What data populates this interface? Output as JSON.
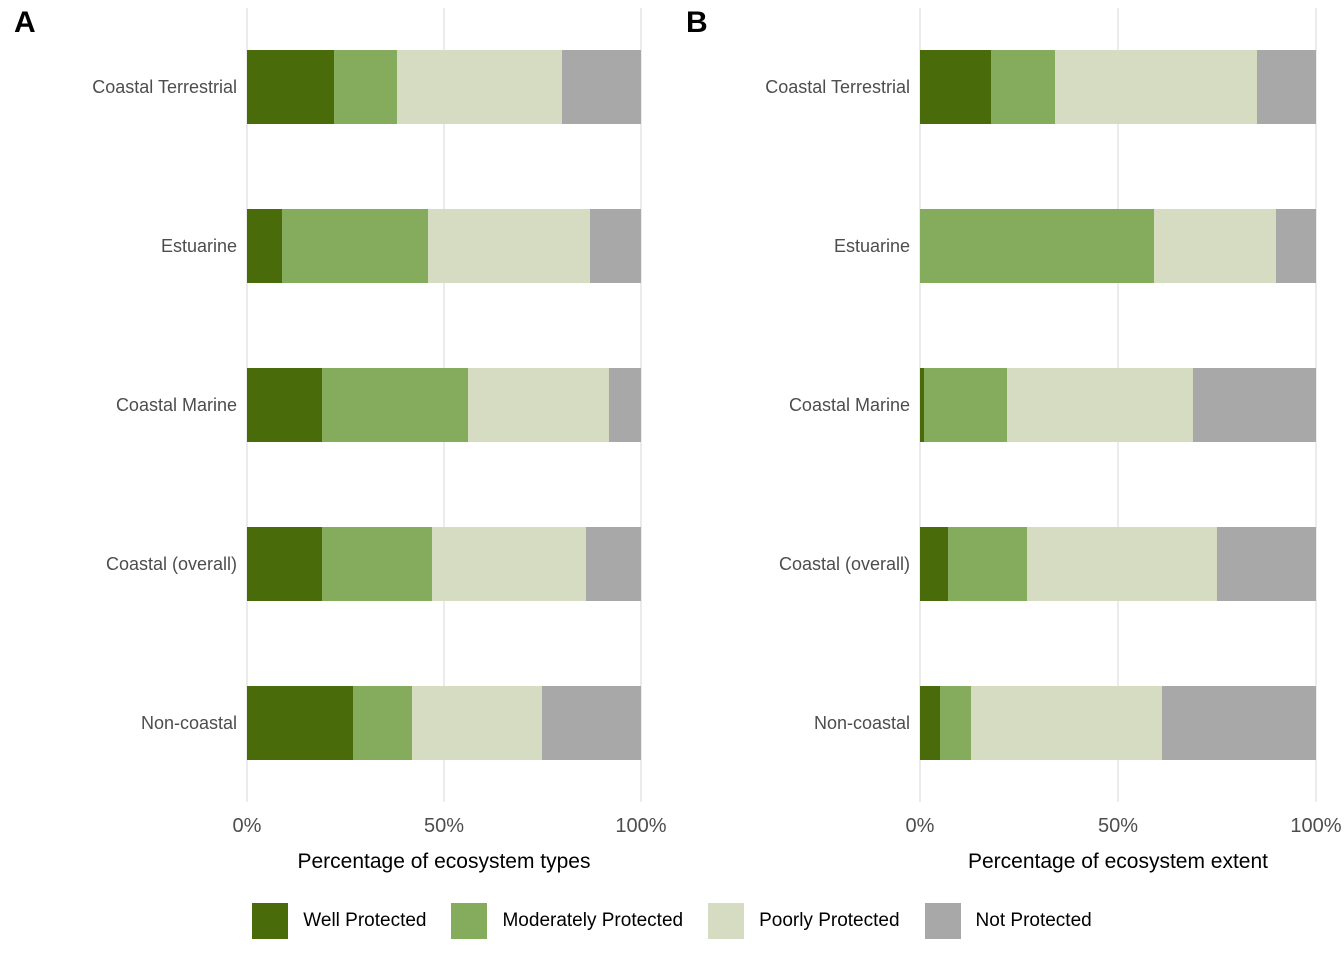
{
  "chart_data": [
    {
      "type": "bar",
      "orientation": "horizontal",
      "stacked": true,
      "panel_label": "A",
      "xlabel": "Percentage of ecosystem types",
      "xlim": [
        0,
        100
      ],
      "grid": "vertical-only",
      "categories": [
        "Coastal Terrestrial",
        "Estuarine",
        "Coastal Marine",
        "Coastal (overall)",
        "Non-coastal"
      ],
      "series": [
        {
          "name": "Well Protected",
          "color": "#4a6b0a",
          "values": [
            22,
            9,
            19,
            19,
            27
          ]
        },
        {
          "name": "Moderately Protected",
          "color": "#85ab5d",
          "values": [
            16,
            37,
            37,
            28,
            15
          ]
        },
        {
          "name": "Poorly Protected",
          "color": "#d5dcc2",
          "values": [
            42,
            41,
            36,
            39,
            33
          ]
        },
        {
          "name": "Not Protected",
          "color": "#a8a8a8",
          "values": [
            20,
            13,
            8,
            14,
            25
          ]
        }
      ],
      "xticks": [
        {
          "label": "0%",
          "value": 0
        },
        {
          "label": "50%",
          "value": 50
        },
        {
          "label": "100%",
          "value": 100
        }
      ]
    },
    {
      "type": "bar",
      "orientation": "horizontal",
      "stacked": true,
      "panel_label": "B",
      "xlabel": "Percentage of ecosystem extent",
      "xlim": [
        0,
        100
      ],
      "grid": "vertical-only",
      "categories": [
        "Coastal Terrestrial",
        "Estuarine",
        "Coastal Marine",
        "Coastal (overall)",
        "Non-coastal"
      ],
      "series": [
        {
          "name": "Well Protected",
          "color": "#4a6b0a",
          "values": [
            18,
            0,
            1,
            7,
            5
          ]
        },
        {
          "name": "Moderately Protected",
          "color": "#85ab5d",
          "values": [
            16,
            59,
            21,
            20,
            8
          ]
        },
        {
          "name": "Poorly Protected",
          "color": "#d5dcc2",
          "values": [
            51,
            31,
            47,
            48,
            48
          ]
        },
        {
          "name": "Not Protected",
          "color": "#a8a8a8",
          "values": [
            15,
            10,
            31,
            25,
            39
          ]
        }
      ],
      "xticks": [
        {
          "label": "0%",
          "value": 0
        },
        {
          "label": "50%",
          "value": 50
        },
        {
          "label": "100%",
          "value": 100
        }
      ]
    }
  ],
  "legend": {
    "items": [
      {
        "label": "Well Protected",
        "color": "#4a6b0a"
      },
      {
        "label": "Moderately Protected",
        "color": "#85ab5d"
      },
      {
        "label": "Poorly Protected",
        "color": "#d5dcc2"
      },
      {
        "label": "Not Protected",
        "color": "#a8a8a8"
      }
    ]
  },
  "colors": {
    "background": "#ffffff",
    "gridline": "#ebebeb",
    "axis_text": "#4d4d4d",
    "title_text": "#000000"
  }
}
